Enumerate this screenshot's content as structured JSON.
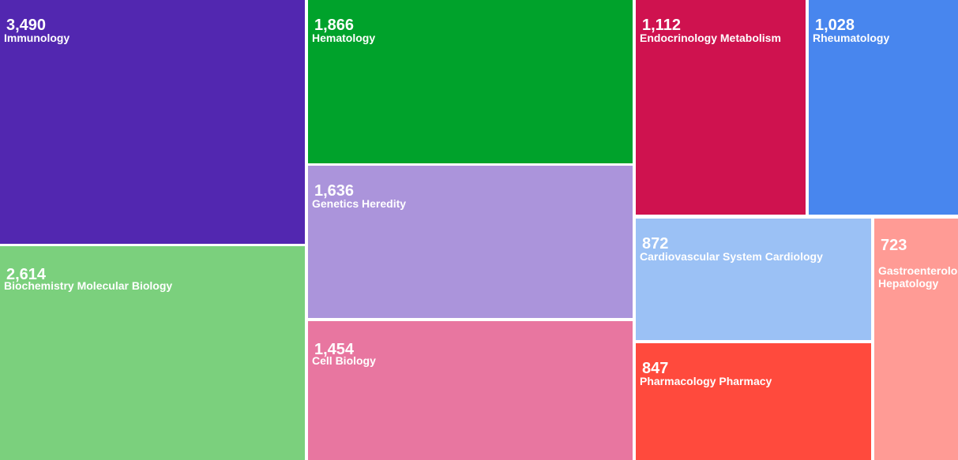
{
  "chart_data": {
    "type": "treemap",
    "title": "",
    "items": [
      {
        "label": "Immunology",
        "value": 3490,
        "value_text": "3,490",
        "color": "#5227b0"
      },
      {
        "label": "Biochemistry Molecular Biology",
        "value": 2614,
        "value_text": "2,614",
        "color": "#7bd07d"
      },
      {
        "label": "Hematology",
        "value": 1866,
        "value_text": "1,866",
        "color": "#00a22b"
      },
      {
        "label": "Genetics Heredity",
        "value": 1636,
        "value_text": "1,636",
        "color": "#ab94db"
      },
      {
        "label": "Cell Biology",
        "value": 1454,
        "value_text": "1,454",
        "color": "#e876a0"
      },
      {
        "label": "Endocrinology Metabolism",
        "value": 1112,
        "value_text": "1,112",
        "color": "#cf124f"
      },
      {
        "label": "Rheumatology",
        "value": 1028,
        "value_text": "1,028",
        "color": "#4886ee"
      },
      {
        "label": "Cardiovascular System Cardiology",
        "value": 872,
        "value_text": "872",
        "color": "#9bc1f5"
      },
      {
        "label": "Pharmacology Pharmacy",
        "value": 847,
        "value_text": "847",
        "color": "#ff4a3d"
      },
      {
        "label": "Gastroenterology Hepatology",
        "value": 723,
        "value_text": "723",
        "color": "#ff9b95"
      }
    ]
  }
}
